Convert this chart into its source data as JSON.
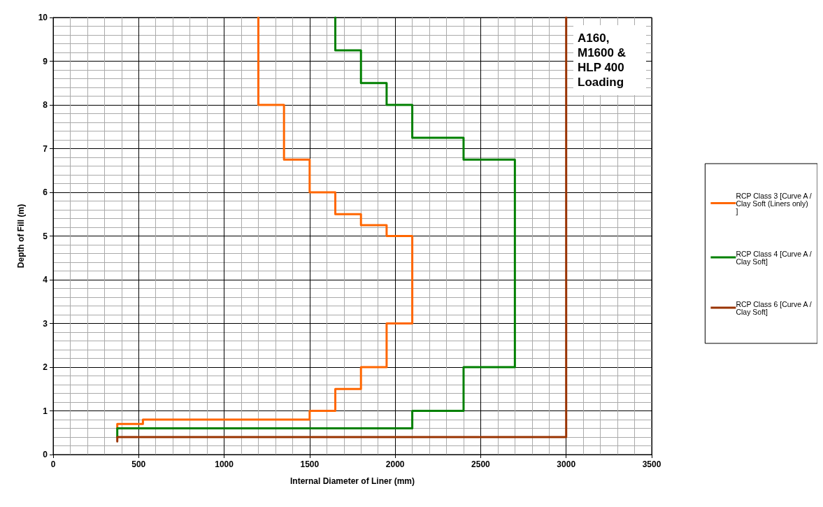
{
  "chart_data": {
    "type": "line",
    "xlabel": "Internal Diameter of Liner (mm)",
    "ylabel": "Depth of Fill (m)",
    "annotations": [
      "A160, M1600 & HLP 400 Loading"
    ],
    "xlim": [
      0,
      3500
    ],
    "xticks": [
      0,
      500,
      1000,
      1500,
      2000,
      2500,
      3000,
      3500
    ],
    "ylim": [
      0,
      10
    ],
    "yticks": [
      0,
      1,
      2,
      3,
      4,
      5,
      6,
      7,
      8,
      9,
      10
    ],
    "grid": true,
    "legend": "right",
    "marker": "none",
    "line_style": "solid",
    "series": [
      {
        "name": "RCP Class 3 [Curve A / Clay Soft (Liners only)]",
        "color": "#ff6600",
        "x": [
          375,
          375,
          525,
          525,
          1500,
          1500,
          1650,
          1650,
          1800,
          1800,
          1950,
          1950,
          2100,
          2100,
          1950,
          1950,
          1800,
          1800,
          1650,
          1650,
          1500,
          1500,
          1350,
          1350,
          1200,
          1200
        ],
        "values": [
          0.6,
          0.7,
          0.7,
          0.8,
          0.8,
          1.0,
          1.0,
          1.5,
          1.5,
          2.0,
          2.0,
          3.0,
          3.0,
          5.0,
          5.0,
          5.25,
          5.25,
          5.5,
          5.5,
          6.0,
          6.0,
          6.75,
          6.75,
          8.0,
          8.0,
          10
        ]
      },
      {
        "name": "RCP Class 4 [Curve A / Clay Soft]",
        "color": "#008000",
        "x": [
          375,
          375,
          2100,
          2100,
          2400,
          2400,
          2700,
          2700,
          2400,
          2400,
          2100,
          2100,
          1950,
          1950,
          1800,
          1800,
          1650,
          1650
        ],
        "values": [
          0.4,
          0.6,
          0.6,
          1.0,
          1.0,
          2.0,
          2.0,
          6.75,
          6.75,
          7.25,
          7.25,
          8.0,
          8.0,
          8.5,
          8.5,
          9.25,
          9.25,
          10
        ]
      },
      {
        "name": "RCP Class 6 [Curve A / Clay Soft]",
        "color": "#993300",
        "x": [
          375,
          375,
          3000,
          3000
        ],
        "values": [
          0.3,
          0.4,
          0.4,
          10
        ]
      }
    ]
  }
}
